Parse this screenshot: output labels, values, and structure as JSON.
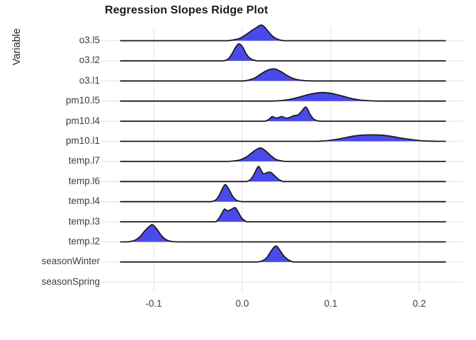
{
  "title": "Regression Slopes Ridge Plot",
  "colors": {
    "density_fill": "#4a4aec",
    "density_stroke": "#1a1a1a",
    "grid": "#e7e7e7",
    "tick_text": "#3d3d3d",
    "title_text": "#1a1a1a"
  },
  "chart_data": {
    "type": "area",
    "subtype": "ridgeline-density",
    "title": "Regression Slopes Ridge Plot",
    "xlabel": "",
    "ylabel": "Variable",
    "xlim": [
      -0.159,
      0.25
    ],
    "line_range": [
      -0.138,
      0.23
    ],
    "x_ticks": [
      {
        "value": -0.1,
        "label": "-0.1"
      },
      {
        "value": 0.0,
        "label": "0.0"
      },
      {
        "value": 0.1,
        "label": "0.1"
      },
      {
        "value": 0.2,
        "label": "0.2"
      }
    ],
    "grid": "major-only",
    "legend": "none",
    "categories": [
      "o3.l5",
      "o3.l2",
      "o3.l1",
      "pm10.l5",
      "pm10.l4",
      "pm10.l1",
      "temp.l7",
      "temp.l6",
      "temp.l4",
      "temp.l3",
      "temp.l2",
      "seasonWinter",
      "seasonSpring"
    ],
    "series": [
      {
        "name": "o3.l5",
        "has_line": true,
        "rel_height": 0.92,
        "peak_at": 0.021,
        "points": [
          [
            -0.017,
            0
          ],
          [
            -0.01,
            0.05
          ],
          [
            -0.003,
            0.15
          ],
          [
            0.004,
            0.38
          ],
          [
            0.01,
            0.62
          ],
          [
            0.015,
            0.8
          ],
          [
            0.021,
            1.0
          ],
          [
            0.025,
            0.88
          ],
          [
            0.03,
            0.55
          ],
          [
            0.035,
            0.25
          ],
          [
            0.041,
            0.07
          ],
          [
            0.047,
            0
          ]
        ]
      },
      {
        "name": "o3.l2",
        "has_line": true,
        "rel_height": 1.0,
        "peak_at": -0.004,
        "points": [
          [
            -0.021,
            0
          ],
          [
            -0.016,
            0.1
          ],
          [
            -0.012,
            0.38
          ],
          [
            -0.008,
            0.75
          ],
          [
            -0.004,
            1.0
          ],
          [
            0.0,
            0.85
          ],
          [
            0.004,
            0.45
          ],
          [
            0.008,
            0.18
          ],
          [
            0.012,
            0.06
          ],
          [
            0.017,
            0
          ]
        ]
      },
      {
        "name": "o3.l1",
        "has_line": true,
        "rel_height": 0.71,
        "peak_at": 0.036,
        "points": [
          [
            0.001,
            0
          ],
          [
            0.008,
            0.08
          ],
          [
            0.015,
            0.28
          ],
          [
            0.022,
            0.62
          ],
          [
            0.029,
            0.9
          ],
          [
            0.036,
            1.0
          ],
          [
            0.043,
            0.8
          ],
          [
            0.05,
            0.48
          ],
          [
            0.057,
            0.22
          ],
          [
            0.064,
            0.08
          ],
          [
            0.072,
            0.02
          ],
          [
            0.08,
            0
          ]
        ]
      },
      {
        "name": "pm10.l5",
        "has_line": true,
        "rel_height": 0.5,
        "peak_at": 0.092,
        "points": [
          [
            0.034,
            0
          ],
          [
            0.044,
            0.06
          ],
          [
            0.054,
            0.2
          ],
          [
            0.064,
            0.45
          ],
          [
            0.074,
            0.75
          ],
          [
            0.084,
            0.95
          ],
          [
            0.092,
            1.0
          ],
          [
            0.102,
            0.88
          ],
          [
            0.112,
            0.62
          ],
          [
            0.122,
            0.34
          ],
          [
            0.132,
            0.14
          ],
          [
            0.142,
            0.05
          ],
          [
            0.154,
            0
          ]
        ]
      },
      {
        "name": "pm10.l4",
        "has_line": true,
        "rel_height": 0.83,
        "peak_at": 0.072,
        "points": [
          [
            0.026,
            0
          ],
          [
            0.03,
            0.12
          ],
          [
            0.034,
            0.33
          ],
          [
            0.038,
            0.22
          ],
          [
            0.042,
            0.28
          ],
          [
            0.045,
            0.33
          ],
          [
            0.049,
            0.22
          ],
          [
            0.053,
            0.25
          ],
          [
            0.058,
            0.38
          ],
          [
            0.063,
            0.45
          ],
          [
            0.067,
            0.7
          ],
          [
            0.072,
            1.0
          ],
          [
            0.076,
            0.55
          ],
          [
            0.08,
            0.18
          ],
          [
            0.084,
            0.04
          ],
          [
            0.088,
            0
          ]
        ]
      },
      {
        "name": "pm10.l1",
        "has_line": true,
        "rel_height": 0.38,
        "peak_at": 0.148,
        "points": [
          [
            0.086,
            0
          ],
          [
            0.096,
            0.1
          ],
          [
            0.106,
            0.28
          ],
          [
            0.116,
            0.55
          ],
          [
            0.126,
            0.82
          ],
          [
            0.137,
            0.98
          ],
          [
            0.148,
            1.0
          ],
          [
            0.158,
            0.95
          ],
          [
            0.168,
            0.78
          ],
          [
            0.178,
            0.52
          ],
          [
            0.19,
            0.28
          ],
          [
            0.202,
            0.1
          ],
          [
            0.212,
            0.03
          ],
          [
            0.222,
            0
          ]
        ]
      },
      {
        "name": "temp.l7",
        "has_line": true,
        "rel_height": 0.79,
        "peak_at": 0.021,
        "points": [
          [
            -0.016,
            0
          ],
          [
            -0.009,
            0.04
          ],
          [
            -0.002,
            0.12
          ],
          [
            0.005,
            0.35
          ],
          [
            0.011,
            0.65
          ],
          [
            0.016,
            0.88
          ],
          [
            0.021,
            1.0
          ],
          [
            0.026,
            0.8
          ],
          [
            0.032,
            0.45
          ],
          [
            0.038,
            0.15
          ],
          [
            0.044,
            0.04
          ],
          [
            0.049,
            0
          ]
        ]
      },
      {
        "name": "temp.l6",
        "has_line": true,
        "rel_height": 0.875,
        "peak_at": 0.018,
        "points": [
          [
            0.005,
            0
          ],
          [
            0.009,
            0.12
          ],
          [
            0.013,
            0.45
          ],
          [
            0.018,
            1.0
          ],
          [
            0.021,
            0.78
          ],
          [
            0.024,
            0.52
          ],
          [
            0.028,
            0.6
          ],
          [
            0.032,
            0.62
          ],
          [
            0.036,
            0.42
          ],
          [
            0.041,
            0.15
          ],
          [
            0.046,
            0
          ]
        ]
      },
      {
        "name": "temp.l4",
        "has_line": true,
        "rel_height": 1.0,
        "peak_at": -0.019,
        "points": [
          [
            -0.035,
            0
          ],
          [
            -0.03,
            0.1
          ],
          [
            -0.026,
            0.38
          ],
          [
            -0.022,
            0.8
          ],
          [
            -0.019,
            1.0
          ],
          [
            -0.015,
            0.72
          ],
          [
            -0.011,
            0.32
          ],
          [
            -0.007,
            0.1
          ],
          [
            -0.003,
            0.02
          ],
          [
            0.001,
            0
          ]
        ]
      },
      {
        "name": "temp.l3",
        "has_line": true,
        "rel_height": 0.83,
        "peak_at": -0.008,
        "points": [
          [
            -0.03,
            0
          ],
          [
            -0.027,
            0.18
          ],
          [
            -0.023,
            0.6
          ],
          [
            -0.02,
            0.9
          ],
          [
            -0.017,
            0.78
          ],
          [
            -0.013,
            0.85
          ],
          [
            -0.008,
            1.0
          ],
          [
            -0.004,
            0.62
          ],
          [
            0.0,
            0.22
          ],
          [
            0.005,
            0
          ]
        ]
      },
      {
        "name": "temp.l2",
        "has_line": true,
        "rel_height": 1.0,
        "peak_at": -0.101,
        "points": [
          [
            -0.129,
            0
          ],
          [
            -0.122,
            0.08
          ],
          [
            -0.116,
            0.28
          ],
          [
            -0.11,
            0.65
          ],
          [
            -0.104,
            0.95
          ],
          [
            -0.101,
            1.0
          ],
          [
            -0.096,
            0.72
          ],
          [
            -0.091,
            0.35
          ],
          [
            -0.085,
            0.1
          ],
          [
            -0.079,
            0.02
          ],
          [
            -0.072,
            0
          ]
        ]
      },
      {
        "name": "seasonWinter",
        "has_line": true,
        "rel_height": 0.92,
        "peak_at": 0.039,
        "points": [
          [
            0.017,
            0
          ],
          [
            0.023,
            0.08
          ],
          [
            0.028,
            0.3
          ],
          [
            0.032,
            0.65
          ],
          [
            0.036,
            0.95
          ],
          [
            0.039,
            1.0
          ],
          [
            0.043,
            0.7
          ],
          [
            0.048,
            0.32
          ],
          [
            0.053,
            0.1
          ],
          [
            0.058,
            0
          ]
        ]
      },
      {
        "name": "seasonSpring",
        "has_line": false,
        "rel_height": 0,
        "peak_at": null,
        "points": []
      }
    ]
  }
}
